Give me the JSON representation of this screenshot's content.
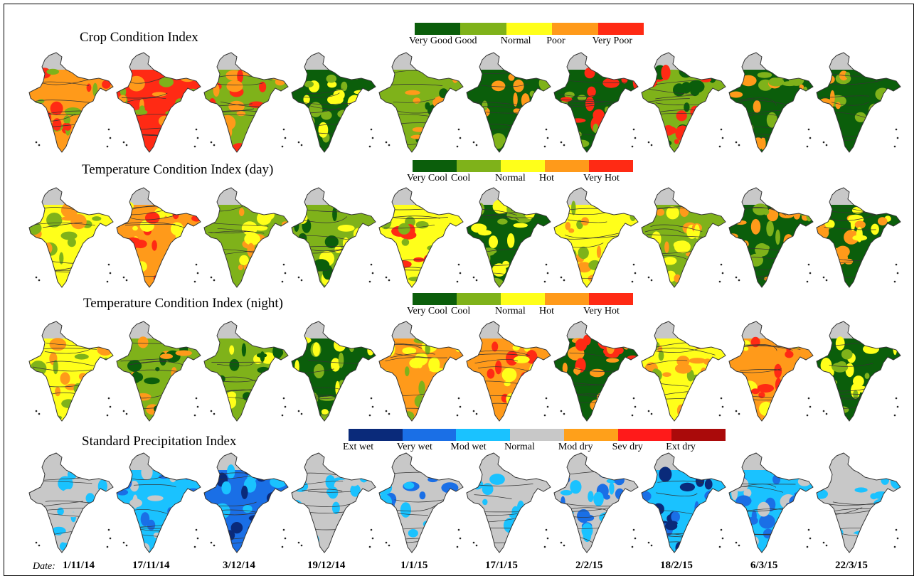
{
  "rows": [
    {
      "title": "Crop Condition Index",
      "legend": [
        {
          "label": "Very Good",
          "color": "#0b5e0b"
        },
        {
          "label": "Good",
          "color": "#7fb21a"
        },
        {
          "label": "Normal",
          "color": "#ffff1a"
        },
        {
          "label": "Poor",
          "color": "#ff9a1a"
        },
        {
          "label": "Very Poor",
          "color": "#ff2a14"
        }
      ]
    },
    {
      "title": "Temperature Condition Index (day)",
      "legend": [
        {
          "label": "Very Cool",
          "color": "#0b5e0b"
        },
        {
          "label": "Cool",
          "color": "#7fb21a"
        },
        {
          "label": "Normal",
          "color": "#ffff1a"
        },
        {
          "label": "Hot",
          "color": "#ff9a1a"
        },
        {
          "label": "Very Hot",
          "color": "#ff2a14"
        }
      ]
    },
    {
      "title": "Temperature Condition Index (night)",
      "legend": [
        {
          "label": "Very Cool",
          "color": "#0b5e0b"
        },
        {
          "label": "Cool",
          "color": "#7fb21a"
        },
        {
          "label": "Normal",
          "color": "#ffff1a"
        },
        {
          "label": "Hot",
          "color": "#ff9a1a"
        },
        {
          "label": "Very Hot",
          "color": "#ff2a14"
        }
      ]
    },
    {
      "title": "Standard Precipitation Index",
      "legend": [
        {
          "label": "Ext wet",
          "color": "#0a2a7a"
        },
        {
          "label": "Very wet",
          "color": "#1a6fe6"
        },
        {
          "label": "Mod wet",
          "color": "#1ac2ff"
        },
        {
          "label": "Normal",
          "color": "#c8c8c8"
        },
        {
          "label": "Mod dry",
          "color": "#ffa01a"
        },
        {
          "label": "Sev dry",
          "color": "#ff1a1a"
        },
        {
          "label": "Ext dry",
          "color": "#aa0a0a"
        }
      ]
    }
  ],
  "date_prefix": "Date:",
  "dates": [
    "1/11/14",
    "17/11/14",
    "3/12/14",
    "19/12/14",
    "1/1/15",
    "17/1/15",
    "2/2/15",
    "18/2/15",
    "6/3/15",
    "22/3/15"
  ],
  "map_colors": {
    "crop": [
      [
        "#ff9a1a",
        "#ff2a14",
        "#7fb21a"
      ],
      [
        "#ff2a14",
        "#ff9a1a",
        "#7fb21a"
      ],
      [
        "#7fb21a",
        "#ff2a14",
        "#ff9a1a"
      ],
      [
        "#0b5e0b",
        "#7fb21a",
        "#ffff1a"
      ],
      [
        "#7fb21a",
        "#0b5e0b",
        "#ff9a1a"
      ],
      [
        "#0b5e0b",
        "#7fb21a",
        "#ff9a1a"
      ],
      [
        "#0b5e0b",
        "#7fb21a",
        "#ff2a14"
      ],
      [
        "#7fb21a",
        "#0b5e0b",
        "#ff2a14"
      ],
      [
        "#0b5e0b",
        "#7fb21a",
        "#ff9a1a"
      ],
      [
        "#0b5e0b",
        "#7fb21a",
        "#ff9a1a"
      ]
    ],
    "tci_day": [
      [
        "#ffff1a",
        "#ff9a1a",
        "#7fb21a"
      ],
      [
        "#ff9a1a",
        "#ff2a14",
        "#ffff1a"
      ],
      [
        "#7fb21a",
        "#ffff1a",
        "#ff9a1a"
      ],
      [
        "#7fb21a",
        "#0b5e0b",
        "#ffff1a"
      ],
      [
        "#ffff1a",
        "#7fb21a",
        "#ff2a14"
      ],
      [
        "#0b5e0b",
        "#7fb21a",
        "#ffff1a"
      ],
      [
        "#ffff1a",
        "#7fb21a",
        "#ff9a1a"
      ],
      [
        "#7fb21a",
        "#ffff1a",
        "#ff9a1a"
      ],
      [
        "#0b5e0b",
        "#7fb21a",
        "#ff9a1a"
      ],
      [
        "#0b5e0b",
        "#ffff1a",
        "#ff9a1a"
      ]
    ],
    "tci_night": [
      [
        "#ffff1a",
        "#ff9a1a",
        "#7fb21a"
      ],
      [
        "#7fb21a",
        "#ff9a1a",
        "#0b5e0b"
      ],
      [
        "#7fb21a",
        "#0b5e0b",
        "#ffff1a"
      ],
      [
        "#0b5e0b",
        "#7fb21a",
        "#ffff1a"
      ],
      [
        "#ff9a1a",
        "#ffff1a",
        "#7fb21a"
      ],
      [
        "#ff9a1a",
        "#ff2a14",
        "#ffff1a"
      ],
      [
        "#0b5e0b",
        "#ff9a1a",
        "#ff2a14"
      ],
      [
        "#ffff1a",
        "#7fb21a",
        "#ff9a1a"
      ],
      [
        "#ff9a1a",
        "#ffff1a",
        "#ff2a14"
      ],
      [
        "#0b5e0b",
        "#7fb21a",
        "#ffff1a"
      ]
    ],
    "spi": [
      [
        "#c8c8c8",
        "#1ac2ff",
        "#c8c8c8"
      ],
      [
        "#1ac2ff",
        "#c8c8c8",
        "#1a6fe6"
      ],
      [
        "#1a6fe6",
        "#1ac2ff",
        "#0a2a7a"
      ],
      [
        "#c8c8c8",
        "#1ac2ff",
        "#c8c8c8"
      ],
      [
        "#c8c8c8",
        "#1ac2ff",
        "#1a6fe6"
      ],
      [
        "#c8c8c8",
        "#1ac2ff",
        "#c8c8c8"
      ],
      [
        "#c8c8c8",
        "#1ac2ff",
        "#1a6fe6"
      ],
      [
        "#1ac2ff",
        "#1a6fe6",
        "#0a2a7a"
      ],
      [
        "#1ac2ff",
        "#c8c8c8",
        "#1a6fe6"
      ],
      [
        "#c8c8c8",
        "#1ac2ff",
        "#c8c8c8"
      ]
    ]
  },
  "outline_color": "#333333",
  "base_gray": "#c8c8c8"
}
